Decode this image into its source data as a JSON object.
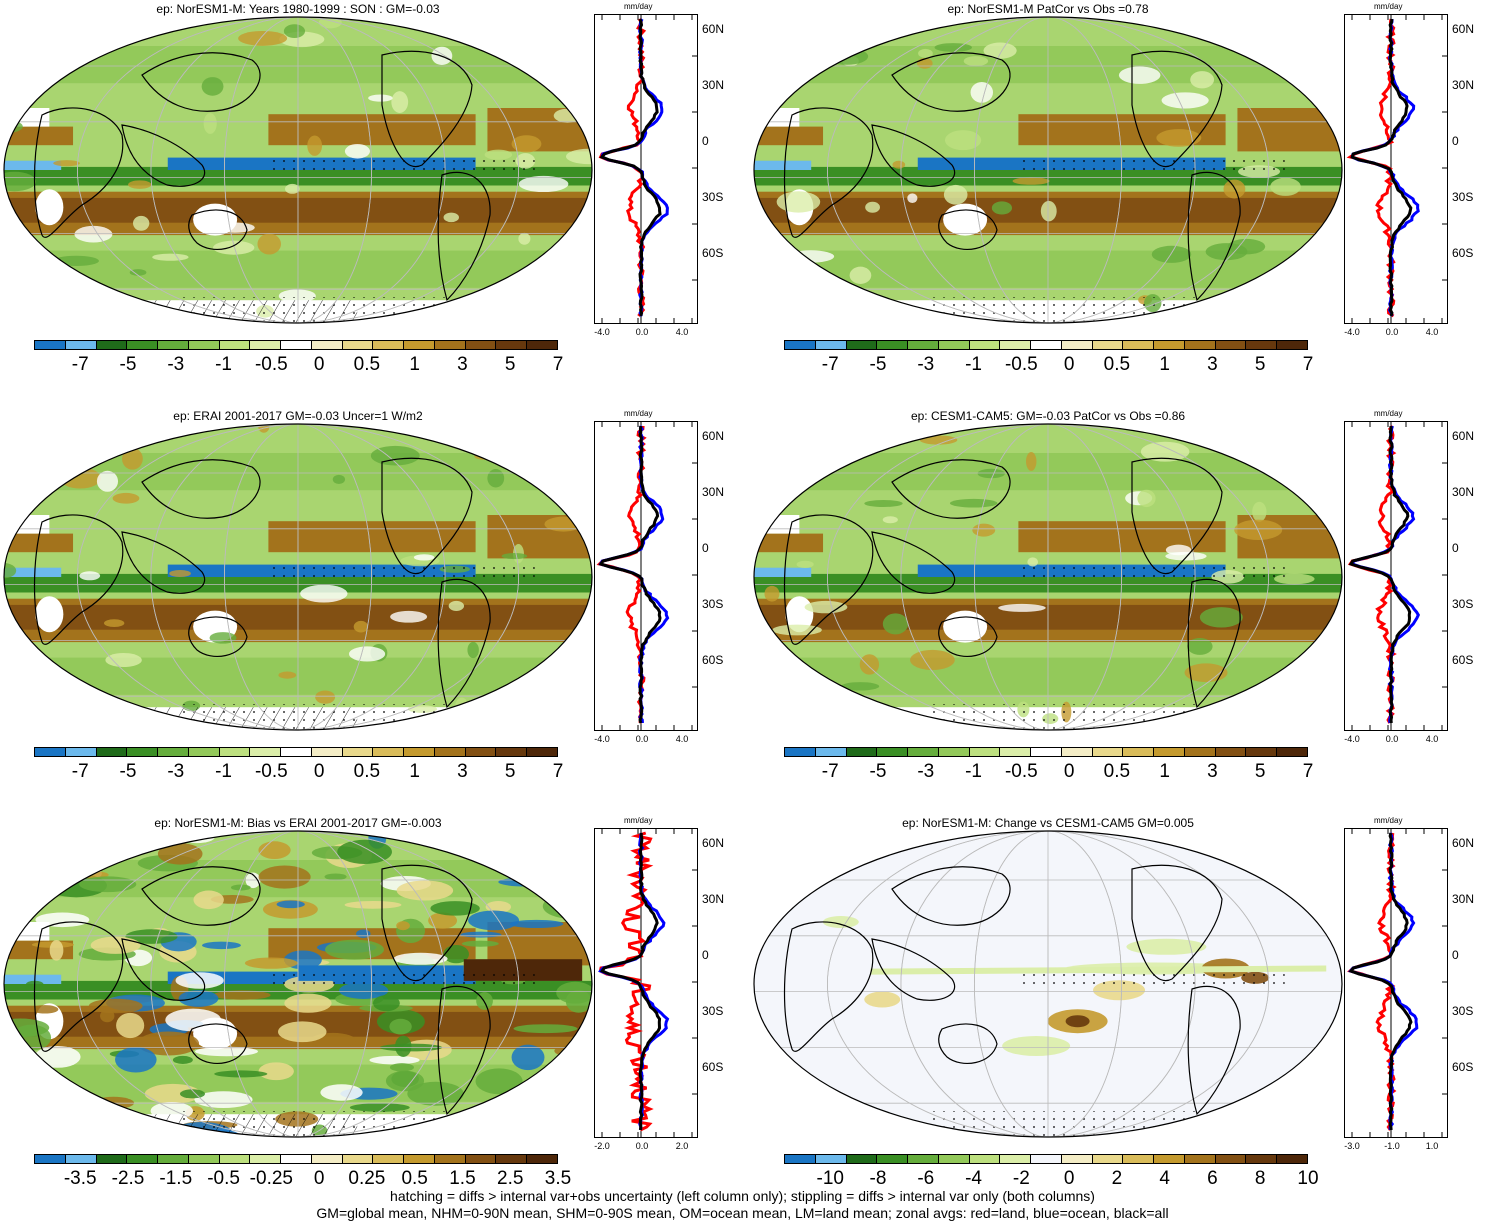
{
  "panels": [
    {
      "title": "ep: NorESM1-M: Years 1980-1999 : SON : GM=-0.03",
      "colorbar": "p1",
      "xticks": [
        "-4.0",
        "0.0",
        "4.0"
      ]
    },
    {
      "title": "ep: NorESM1-M PatCor vs Obs =0.78",
      "colorbar": "p1",
      "xticks": [
        "-4.0",
        "0.0",
        "4.0"
      ]
    },
    {
      "title": "ep: ERAI 2001-2017 GM=-0.03 Uncer=1 W/m2",
      "colorbar": "p1",
      "xticks": [
        "-4.0",
        "0.0",
        "4.0"
      ]
    },
    {
      "title": "ep: CESM1-CAM5: GM=-0.03 PatCor vs Obs =0.86",
      "colorbar": "p1",
      "xticks": [
        "-4.0",
        "0.0",
        "4.0"
      ]
    },
    {
      "title": "ep: NorESM1-M: Bias vs ERAI 2001-2017  GM=-0.003",
      "colorbar": "bias",
      "xticks": [
        "-2.0",
        "0.0",
        "2.0"
      ]
    },
    {
      "title": "ep: NorESM1-M: Change vs CESM1-CAM5 GM=0.005",
      "colorbar": "change",
      "xticks": [
        "-3.0",
        "-1.0",
        "1.0"
      ]
    }
  ],
  "colorbars": {
    "p1": {
      "labels": [
        "-7",
        "-5",
        "-3",
        "-1",
        "-0.5",
        "0",
        "0.5",
        "1",
        "3",
        "5",
        "7"
      ],
      "colors": [
        "#1a75c4",
        "#6cb9ec",
        "#1f6b1a",
        "#3a8f24",
        "#65ad3c",
        "#93c95a",
        "#bde07f",
        "#dbeea9",
        "#ffffff",
        "#f4edc6",
        "#e9d98c",
        "#d9bc5a",
        "#c49a2e",
        "#a3731c",
        "#825013",
        "#66380d",
        "#4e2709"
      ]
    },
    "bias": {
      "labels": [
        "-3.5",
        "-2.5",
        "-1.5",
        "-0.5",
        "-0.25",
        "0",
        "0.25",
        "0.5",
        "1.5",
        "2.5",
        "3.5"
      ],
      "colors": [
        "#1a75c4",
        "#6cb9ec",
        "#1f6b1a",
        "#3a8f24",
        "#65ad3c",
        "#93c95a",
        "#bde07f",
        "#dbeea9",
        "#ffffff",
        "#f4edc6",
        "#e9d98c",
        "#d9bc5a",
        "#c49a2e",
        "#a3731c",
        "#825013",
        "#66380d",
        "#4e2709"
      ]
    },
    "change": {
      "labels": [
        "-10",
        "-8",
        "-6",
        "-4",
        "-2",
        "0",
        "2",
        "4",
        "6",
        "8",
        "10"
      ],
      "colors": [
        "#1a75c4",
        "#6cb9ec",
        "#1f6b1a",
        "#3a8f24",
        "#65ad3c",
        "#93c95a",
        "#bde07f",
        "#dbeea9",
        "#f4f6fb",
        "#f4edc6",
        "#e9d98c",
        "#d9bc5a",
        "#c49a2e",
        "#a3731c",
        "#825013",
        "#66380d",
        "#4e2709"
      ]
    }
  },
  "zonal": {
    "units": "mm/day",
    "lat_labels": [
      "60N",
      "30N",
      "0",
      "30S",
      "60S"
    ]
  },
  "footer": {
    "line1": "hatching = diffs > internal var+obs uncertainty (left column only); stippling = diffs > internal var only (both columns)",
    "line2": "GM=global mean, NHM=0-90N mean, SHM=0-90S mean, OM=ocean mean, LM=land mean; zonal avgs: red=land, blue=ocean, black=all"
  },
  "chart_data": [
    {
      "type": "heatmap",
      "title": "ep: NorESM1-M: Years 1980-1999 : SON : GM=-0.03",
      "colorbar_levels": [
        -7,
        -5,
        -3,
        -1,
        -0.5,
        0,
        0.5,
        1,
        3,
        5,
        7
      ]
    },
    {
      "type": "heatmap",
      "title": "ep: NorESM1-M PatCor vs Obs =0.78",
      "colorbar_levels": [
        -7,
        -5,
        -3,
        -1,
        -0.5,
        0,
        0.5,
        1,
        3,
        5,
        7
      ]
    },
    {
      "type": "heatmap",
      "title": "ep: ERAI 2001-2017 GM=-0.03 Uncer=1 W/m2",
      "colorbar_levels": [
        -7,
        -5,
        -3,
        -1,
        -0.5,
        0,
        0.5,
        1,
        3,
        5,
        7
      ]
    },
    {
      "type": "heatmap",
      "title": "ep: CESM1-CAM5: GM=-0.03 PatCor vs Obs =0.86",
      "colorbar_levels": [
        -7,
        -5,
        -3,
        -1,
        -0.5,
        0,
        0.5,
        1,
        3,
        5,
        7
      ]
    },
    {
      "type": "heatmap",
      "title": "ep: NorESM1-M: Bias vs ERAI 2001-2017  GM=-0.003",
      "colorbar_levels": [
        -3.5,
        -2.5,
        -1.5,
        -0.5,
        -0.25,
        0,
        0.25,
        0.5,
        1.5,
        2.5,
        3.5
      ]
    },
    {
      "type": "heatmap",
      "title": "ep: NorESM1-M: Change vs CESM1-CAM5 GM=0.005",
      "colorbar_levels": [
        -10,
        -8,
        -6,
        -4,
        -2,
        0,
        2,
        4,
        6,
        8,
        10
      ]
    },
    {
      "type": "line",
      "ylabel_ticks": [
        "60N",
        "30N",
        "0",
        "30S",
        "60S"
      ],
      "xlabel": "mm/day",
      "series": [
        {
          "name": "land",
          "color": "#ff0000"
        },
        {
          "name": "ocean",
          "color": "#0000ff"
        },
        {
          "name": "all",
          "color": "#000000"
        }
      ]
    }
  ]
}
